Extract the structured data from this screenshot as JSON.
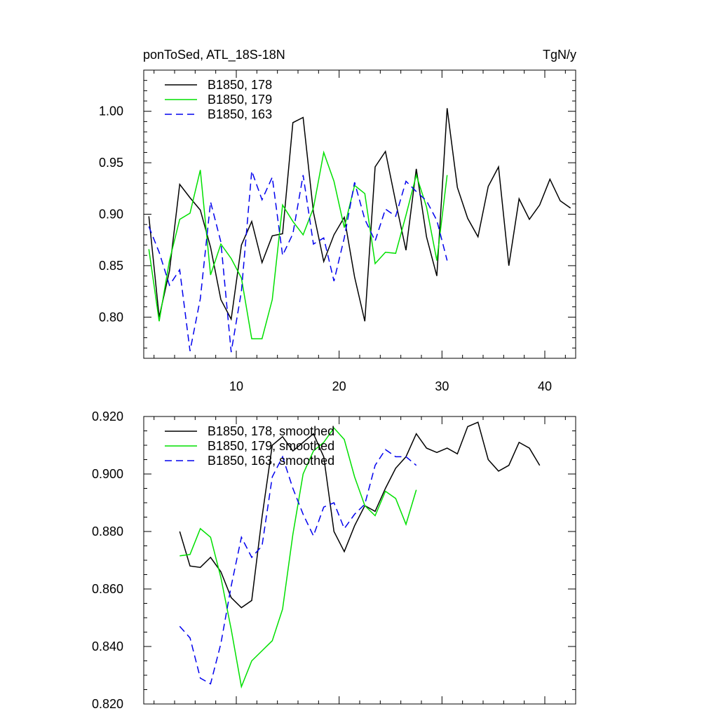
{
  "colors": {
    "black": "#000000",
    "green": "#00e000",
    "blue": "#0000ee"
  },
  "chart_data": [
    {
      "type": "line",
      "title_left": "ponToSed, ATL_18S-18N",
      "title_right": "TgN/y",
      "xlim": [
        1,
        43
      ],
      "ylim": [
        0.76,
        1.04
      ],
      "xticks": [
        10,
        20,
        30,
        40
      ],
      "xtick_labels": [
        "10",
        "20",
        "30",
        "40"
      ],
      "yticks": [
        0.8,
        0.85,
        0.9,
        0.95,
        1.0
      ],
      "ytick_labels": [
        "0.80",
        "0.85",
        "0.90",
        "0.95",
        "1.00"
      ],
      "legend_position": "top-left",
      "series": [
        {
          "name": "B1850, 178",
          "color": "#000000",
          "dash": "solid",
          "x": [
            1.5,
            2.5,
            3.5,
            4.5,
            5.5,
            6.5,
            7.5,
            8.5,
            9.5,
            10.5,
            11.5,
            12.5,
            13.5,
            14.5,
            15.5,
            16.5,
            17.5,
            18.5,
            19.5,
            20.5,
            21.5,
            22.5,
            23.5,
            24.5,
            25.5,
            26.5,
            27.5,
            28.5,
            29.5,
            30.5,
            31.5,
            32.5,
            33.5,
            34.5,
            35.5,
            36.5,
            37.5,
            38.5,
            39.5,
            40.5,
            41.5,
            42.5
          ],
          "y": [
            0.898,
            0.8,
            0.845,
            0.929,
            0.916,
            0.904,
            0.868,
            0.817,
            0.798,
            0.87,
            0.893,
            0.853,
            0.879,
            0.881,
            0.989,
            0.994,
            0.902,
            0.854,
            0.88,
            0.897,
            0.839,
            0.796,
            0.946,
            0.961,
            0.912,
            0.865,
            0.944,
            0.878,
            0.84,
            1.003,
            0.926,
            0.896,
            0.878,
            0.927,
            0.946,
            0.85,
            0.915,
            0.895,
            0.909,
            0.934,
            0.913,
            0.906
          ]
        },
        {
          "name": "B1850, 179",
          "color": "#00e000",
          "dash": "solid",
          "x": [
            1.5,
            2.5,
            3.5,
            4.5,
            5.5,
            6.5,
            7.5,
            8.5,
            9.5,
            10.5,
            11.5,
            12.5,
            13.5,
            14.5,
            15.5,
            16.5,
            17.5,
            18.5,
            19.5,
            20.5,
            21.5,
            22.5,
            23.5,
            24.5,
            25.5,
            26.5,
            27.5,
            28.5,
            29.5,
            30.5
          ],
          "y": [
            0.866,
            0.796,
            0.855,
            0.895,
            0.901,
            0.943,
            0.841,
            0.871,
            0.857,
            0.838,
            0.779,
            0.779,
            0.817,
            0.909,
            0.893,
            0.88,
            0.906,
            0.96,
            0.932,
            0.887,
            0.928,
            0.92,
            0.852,
            0.863,
            0.862,
            0.899,
            0.938,
            0.907,
            0.855,
            0.938
          ]
        },
        {
          "name": "B1850, 163",
          "color": "#0000ee",
          "dash": "dashed",
          "x": [
            1.5,
            2.5,
            3.5,
            4.5,
            5.5,
            6.5,
            7.5,
            8.5,
            9.5,
            10.5,
            11.5,
            12.5,
            13.5,
            14.5,
            15.5,
            16.5,
            17.5,
            18.5,
            19.5,
            20.5,
            21.5,
            22.5,
            23.5,
            24.5,
            25.5,
            26.5,
            27.5,
            28.5,
            29.5,
            30.5
          ],
          "y": [
            0.888,
            0.863,
            0.831,
            0.846,
            0.767,
            0.818,
            0.912,
            0.873,
            0.766,
            0.825,
            0.942,
            0.914,
            0.936,
            0.86,
            0.881,
            0.938,
            0.871,
            0.877,
            0.835,
            0.877,
            0.931,
            0.895,
            0.874,
            0.905,
            0.898,
            0.932,
            0.922,
            0.913,
            0.894,
            0.855
          ]
        }
      ]
    },
    {
      "type": "line",
      "xlim": [
        1,
        43
      ],
      "ylim": [
        0.82,
        0.92
      ],
      "xticks": [
        10,
        20,
        30,
        40
      ],
      "yticks": [
        0.82,
        0.84,
        0.86,
        0.88,
        0.9,
        0.92
      ],
      "ytick_labels": [
        "0.820",
        "0.840",
        "0.860",
        "0.880",
        "0.900",
        "0.920"
      ],
      "legend_position": "top-left",
      "series": [
        {
          "name": "B1850, 178, smoothed",
          "color": "#000000",
          "dash": "solid",
          "x": [
            4.5,
            5.5,
            6.5,
            7.5,
            8.5,
            9.5,
            10.5,
            11.5,
            12.5,
            13.5,
            14.5,
            15.5,
            16.5,
            17.5,
            18.5,
            19.5,
            20.5,
            21.5,
            22.5,
            23.5,
            24.5,
            25.5,
            26.5,
            27.5,
            28.5,
            29.5,
            30.5,
            31.5,
            32.5,
            33.5,
            34.5,
            35.5,
            36.5,
            37.5,
            38.5,
            39.5
          ],
          "y": [
            0.88,
            0.868,
            0.8675,
            0.871,
            0.866,
            0.857,
            0.8535,
            0.856,
            0.885,
            0.91,
            0.913,
            0.908,
            0.911,
            0.914,
            0.906,
            0.88,
            0.873,
            0.882,
            0.889,
            0.887,
            0.895,
            0.902,
            0.906,
            0.914,
            0.909,
            0.9075,
            0.909,
            0.907,
            0.9165,
            0.918,
            0.905,
            0.901,
            0.903,
            0.911,
            0.909,
            0.903
          ]
        },
        {
          "name": "B1850, 179, smoothed",
          "color": "#00e000",
          "dash": "solid",
          "x": [
            4.5,
            5.5,
            6.5,
            7.5,
            8.5,
            9.5,
            10.5,
            11.5,
            12.5,
            13.5,
            14.5,
            15.5,
            16.5,
            17.5,
            18.5,
            19.5,
            20.5,
            21.5,
            22.5,
            23.5,
            24.5,
            25.5,
            26.5,
            27.5
          ],
          "y": [
            0.8715,
            0.872,
            0.881,
            0.878,
            0.864,
            0.846,
            0.826,
            0.835,
            0.8385,
            0.842,
            0.853,
            0.879,
            0.9,
            0.908,
            0.911,
            0.916,
            0.912,
            0.899,
            0.889,
            0.8855,
            0.894,
            0.8915,
            0.8825,
            0.8945
          ]
        },
        {
          "name": "B1850, 163, smoothed",
          "color": "#0000ee",
          "dash": "dashed",
          "x": [
            4.5,
            5.5,
            6.5,
            7.5,
            8.5,
            9.5,
            10.5,
            11.5,
            12.5,
            13.5,
            14.5,
            15.5,
            16.5,
            17.5,
            18.5,
            19.5,
            20.5,
            21.5,
            22.5,
            23.5,
            24.5,
            25.5,
            26.5,
            27.5
          ],
          "y": [
            0.847,
            0.843,
            0.829,
            0.827,
            0.841,
            0.861,
            0.878,
            0.871,
            0.875,
            0.899,
            0.906,
            0.895,
            0.886,
            0.8785,
            0.8885,
            0.89,
            0.881,
            0.886,
            0.8895,
            0.903,
            0.9085,
            0.906,
            0.906,
            0.903
          ]
        }
      ]
    }
  ]
}
